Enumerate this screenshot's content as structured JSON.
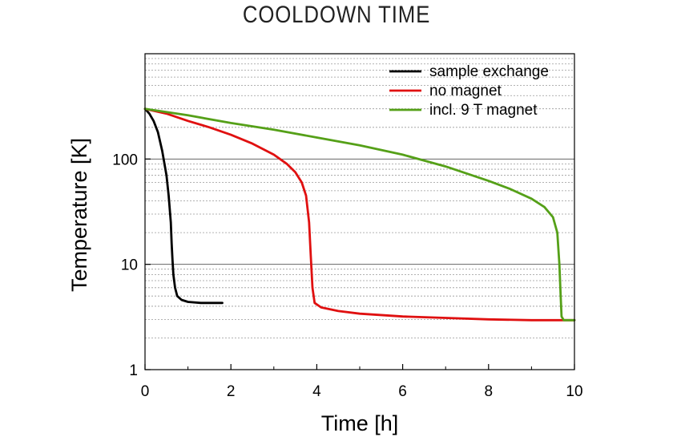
{
  "chart_data": {
    "type": "line",
    "title": "COOLDOWN TIME",
    "xlabel": "Time [h]",
    "ylabel": "Temperature [K]",
    "xlim": [
      0,
      10
    ],
    "ylim": [
      1,
      1000
    ],
    "yscale": "log",
    "xticks": [
      0,
      2,
      4,
      6,
      8,
      10
    ],
    "yticks": [
      1,
      10,
      100
    ],
    "grid": "horizontal, dashed minor lines",
    "legend_position": "top-right",
    "series": [
      {
        "name": "sample exchange",
        "color": "#000000",
        "points": [
          [
            0,
            300
          ],
          [
            0.1,
            270
          ],
          [
            0.2,
            230
          ],
          [
            0.3,
            180
          ],
          [
            0.4,
            120
          ],
          [
            0.5,
            70
          ],
          [
            0.55,
            45
          ],
          [
            0.6,
            25
          ],
          [
            0.62,
            16
          ],
          [
            0.64,
            11
          ],
          [
            0.66,
            8
          ],
          [
            0.7,
            6
          ],
          [
            0.75,
            5
          ],
          [
            0.85,
            4.6
          ],
          [
            1.0,
            4.4
          ],
          [
            1.3,
            4.3
          ],
          [
            1.8,
            4.3
          ]
        ]
      },
      {
        "name": "no magnet",
        "color": "#e01010",
        "points": [
          [
            0,
            300
          ],
          [
            0.5,
            270
          ],
          [
            1.0,
            230
          ],
          [
            1.5,
            200
          ],
          [
            2.0,
            170
          ],
          [
            2.5,
            140
          ],
          [
            3.0,
            110
          ],
          [
            3.3,
            90
          ],
          [
            3.5,
            75
          ],
          [
            3.65,
            60
          ],
          [
            3.75,
            45
          ],
          [
            3.82,
            25
          ],
          [
            3.86,
            12
          ],
          [
            3.9,
            6
          ],
          [
            3.95,
            4.3
          ],
          [
            4.1,
            3.9
          ],
          [
            4.5,
            3.6
          ],
          [
            5,
            3.4
          ],
          [
            6,
            3.2
          ],
          [
            7,
            3.1
          ],
          [
            8,
            3.0
          ],
          [
            9,
            2.95
          ],
          [
            10,
            2.95
          ]
        ]
      },
      {
        "name": "incl. 9 T magnet",
        "color": "#55a018",
        "points": [
          [
            0,
            300
          ],
          [
            1,
            260
          ],
          [
            2,
            220
          ],
          [
            3,
            190
          ],
          [
            4,
            160
          ],
          [
            5,
            135
          ],
          [
            6,
            110
          ],
          [
            7,
            85
          ],
          [
            8,
            62
          ],
          [
            8.5,
            52
          ],
          [
            9,
            42
          ],
          [
            9.3,
            35
          ],
          [
            9.5,
            28
          ],
          [
            9.6,
            20
          ],
          [
            9.65,
            10
          ],
          [
            9.68,
            5
          ],
          [
            9.7,
            3.2
          ],
          [
            9.75,
            2.95
          ],
          [
            10,
            2.95
          ]
        ]
      }
    ]
  }
}
